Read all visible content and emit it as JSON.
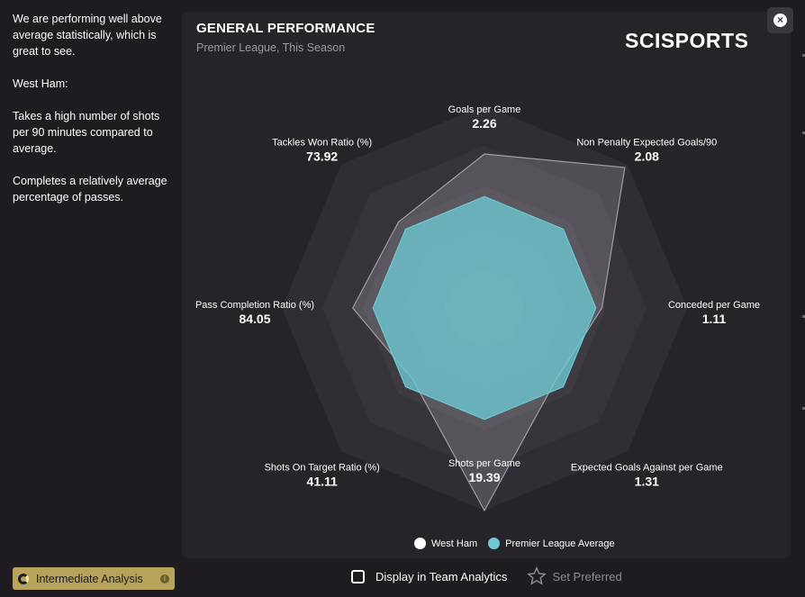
{
  "sidebar": {
    "paragraphs": [
      "We are performing well above average statistically, which is great to see.",
      "West Ham:",
      "Takes a high number of shots per 90 minutes compared to average.",
      "Completes a relatively average percentage of passes."
    ],
    "analysis_label": "Intermediate Analysis"
  },
  "panel": {
    "title": "GENERAL PERFORMANCE",
    "subtitle": "Premier League, This Season",
    "brand": "SCISPORTS"
  },
  "colors": {
    "team": "#ffffff",
    "average": "#6ec9d3",
    "accent": "#b8a35a"
  },
  "chart_data": {
    "type": "radar",
    "axes": [
      {
        "label": "Goals per Game",
        "value": "2.26"
      },
      {
        "label": "Non Penalty Expected Goals/90",
        "value": "2.08"
      },
      {
        "label": "Conceded per Game",
        "value": "1.11"
      },
      {
        "label": "Expected Goals Against per Game",
        "value": "1.31"
      },
      {
        "label": "Shots per Game",
        "value": "19.39"
      },
      {
        "label": "Shots On Target Ratio (%)",
        "value": "41.11"
      },
      {
        "label": "Pass Completion Ratio (%)",
        "value": "84.05"
      },
      {
        "label": "Tackles Won Ratio (%)",
        "value": "73.92"
      }
    ],
    "series": [
      {
        "name": "West Ham",
        "scaled": [
          0.76,
          0.98,
          0.58,
          0.5,
          1.0,
          0.5,
          0.65,
          0.6
        ]
      },
      {
        "name": "Premier League Average",
        "scaled": [
          0.55,
          0.55,
          0.55,
          0.55,
          0.55,
          0.55,
          0.55,
          0.55
        ]
      }
    ],
    "rings": 5,
    "legend_position": "bottom-center"
  },
  "footer": {
    "display_label": "Display in Team Analytics",
    "preferred_label": "Set Preferred"
  }
}
